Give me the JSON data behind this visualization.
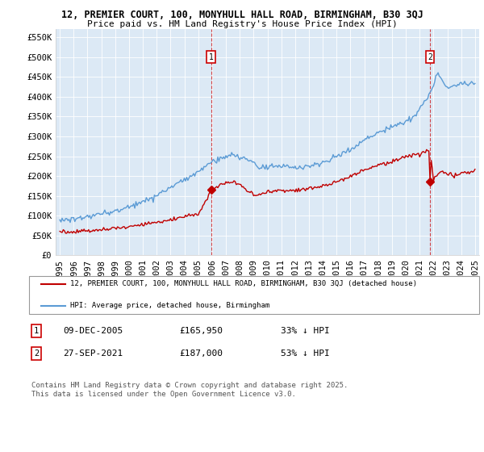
{
  "title_line1": "12, PREMIER COURT, 100, MONYHULL HALL ROAD, BIRMINGHAM, B30 3QJ",
  "title_line2": "Price paid vs. HM Land Registry's House Price Index (HPI)",
  "background_color": "#ffffff",
  "plot_bg_color": "#dce9f5",
  "grid_color": "#ffffff",
  "hpi_color": "#5b9bd5",
  "hpi_fill_color": "#dce9f5",
  "price_color": "#c00000",
  "dashed_line_color": "#cc0000",
  "ytick_labels": [
    "£0",
    "£50K",
    "£100K",
    "£150K",
    "£200K",
    "£250K",
    "£300K",
    "£350K",
    "£400K",
    "£450K",
    "£500K",
    "£550K"
  ],
  "yticks": [
    0,
    50000,
    100000,
    150000,
    200000,
    250000,
    300000,
    350000,
    400000,
    450000,
    500000,
    550000
  ],
  "xmin_year": 1995,
  "xmax_year": 2025,
  "xticks": [
    1995,
    1996,
    1997,
    1998,
    1999,
    2000,
    2001,
    2002,
    2003,
    2004,
    2005,
    2006,
    2007,
    2008,
    2009,
    2010,
    2011,
    2012,
    2013,
    2014,
    2015,
    2016,
    2017,
    2018,
    2019,
    2020,
    2021,
    2022,
    2023,
    2024,
    2025
  ],
  "marker1_x": 2005.93,
  "marker1_y": 165950,
  "marker1_label": "1",
  "marker1_date": "09-DEC-2005",
  "marker1_price": "£165,950",
  "marker1_hpi": "33% ↓ HPI",
  "marker2_x": 2021.74,
  "marker2_y": 187000,
  "marker2_label": "2",
  "marker2_date": "27-SEP-2021",
  "marker2_price": "£187,000",
  "marker2_hpi": "53% ↓ HPI",
  "legend_entry1": "12, PREMIER COURT, 100, MONYHULL HALL ROAD, BIRMINGHAM, B30 3QJ (detached house)",
  "legend_entry2": "HPI: Average price, detached house, Birmingham",
  "footnote": "Contains HM Land Registry data © Crown copyright and database right 2025.\nThis data is licensed under the Open Government Licence v3.0."
}
